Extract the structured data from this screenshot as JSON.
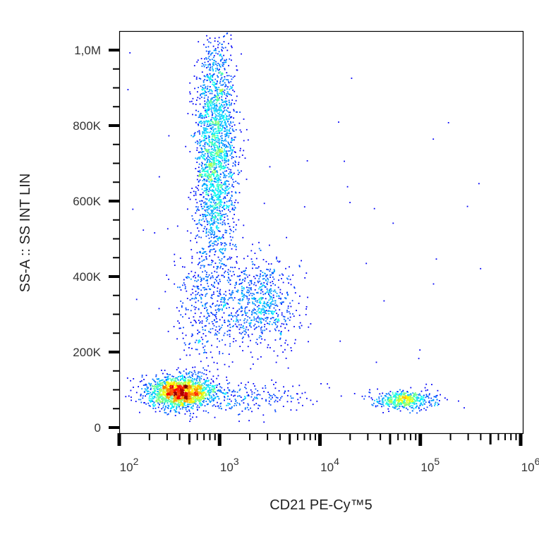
{
  "chart_data": {
    "type": "scatter",
    "subtype": "density-dot-plot",
    "xlabel": "CD21 PE-Cy™5",
    "ylabel": "SS-A :: SS INT LIN",
    "x_scale": "log",
    "xlim": [
      100,
      1000000
    ],
    "ylim": [
      -15000,
      1050000
    ],
    "x_ticks": [
      {
        "value": 100,
        "base": "10",
        "exp": "2"
      },
      {
        "value": 1000,
        "base": "10",
        "exp": "3"
      },
      {
        "value": 10000,
        "base": "10",
        "exp": "4"
      },
      {
        "value": 100000,
        "base": "10",
        "exp": "5"
      },
      {
        "value": 1000000,
        "base": "10",
        "exp": "6"
      }
    ],
    "y_ticks": [
      {
        "value": 0,
        "label": "0"
      },
      {
        "value": 200000,
        "label": "200K"
      },
      {
        "value": 400000,
        "label": "400K"
      },
      {
        "value": 600000,
        "label": "600K"
      },
      {
        "value": 800000,
        "label": "800K"
      },
      {
        "value": 1000000,
        "label": "1,0M"
      }
    ],
    "grid": false,
    "color_map": "jet density (blue low → red high)",
    "colors": [
      "#0000ff",
      "#00c8ff",
      "#00e070",
      "#f0f000",
      "#ff0000"
    ],
    "populations": [
      {
        "x_center": 400,
        "x_log_sd": 0.17,
        "y_center": 95000,
        "y_sd": 22000,
        "count": 1800
      },
      {
        "x_center": 900,
        "x_log_sd": 0.1,
        "y_center": 730000,
        "y_sd": 150000,
        "count": 2200
      },
      {
        "x_center": 2500,
        "x_log_sd": 0.18,
        "y_center": 330000,
        "y_sd": 60000,
        "count": 700
      },
      {
        "x_center": 70000,
        "x_log_sd": 0.15,
        "y_center": 75000,
        "y_sd": 12000,
        "count": 500
      },
      {
        "x_center": 700,
        "x_log_sd": 0.15,
        "y_center": 320000,
        "y_sd": 100000,
        "count": 400
      },
      {
        "x_center": 2000,
        "x_log_sd": 0.3,
        "y_center": 80000,
        "y_sd": 20000,
        "count": 200
      }
    ]
  }
}
